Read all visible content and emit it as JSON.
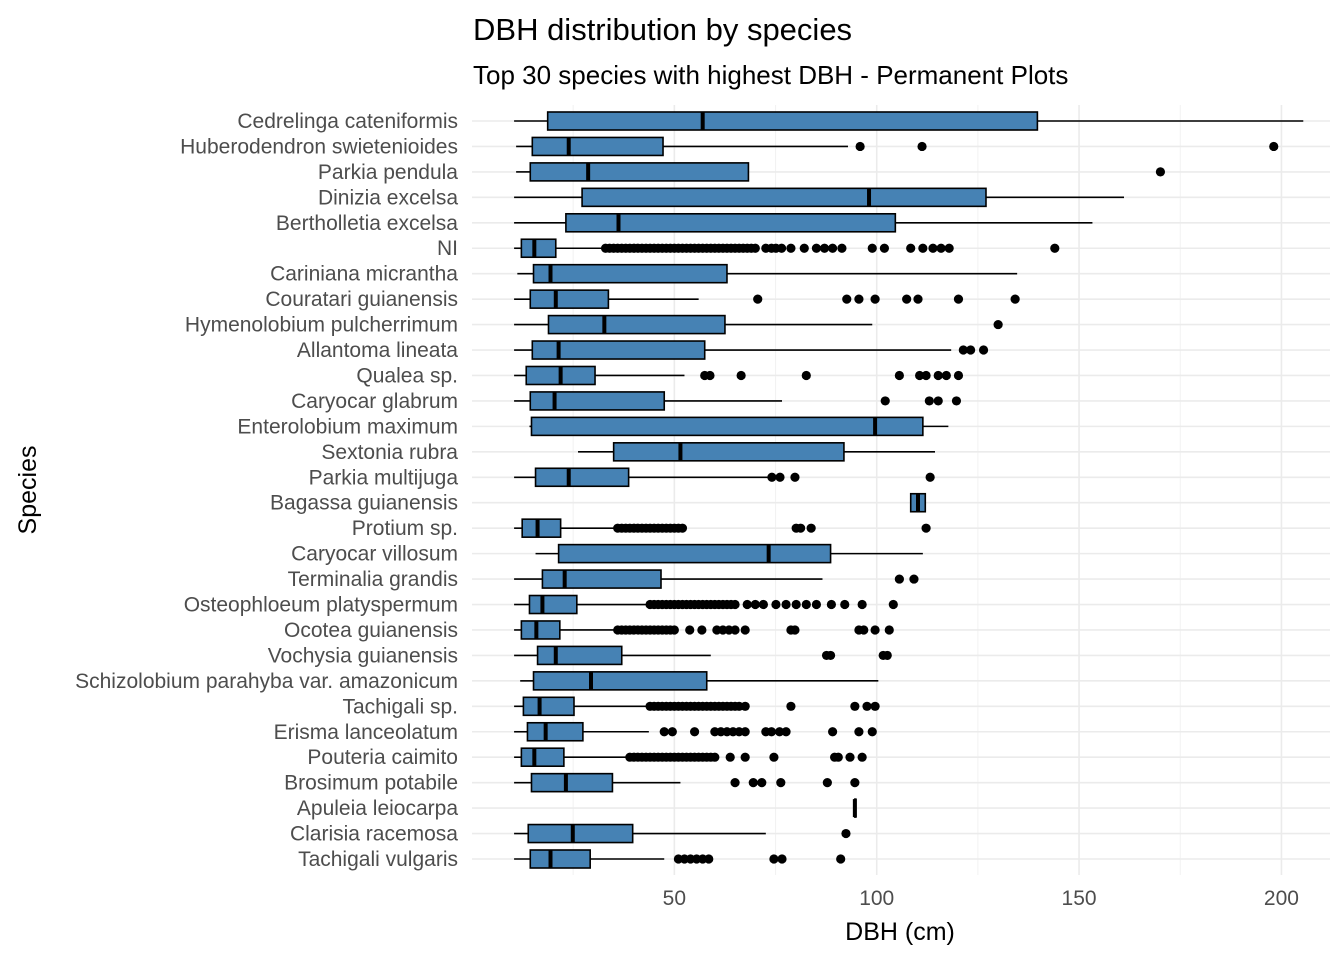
{
  "chart_data": {
    "type": "boxplot",
    "orientation": "horizontal",
    "title": "DBH distribution by species",
    "subtitle": "Top 30 species with highest DBH - Permanent Plots",
    "xlabel": "DBH (cm)",
    "ylabel": "Species",
    "xlim": [
      0,
      212
    ],
    "xticks": [
      50,
      100,
      150,
      200
    ],
    "grid": true,
    "box_color": "#4682B4",
    "species": [
      {
        "name": "Cedrelinga cateniformis",
        "whisker_low": 10.4,
        "q1": 18.7,
        "median": 57.0,
        "q3": 139.7,
        "whisker_high": 205.4,
        "outliers": []
      },
      {
        "name": "Huberodendron swietenioides",
        "whisker_low": 10.9,
        "q1": 14.9,
        "median": 23.9,
        "q3": 47.2,
        "whisker_high": 92.9,
        "outliers": [
          95.9,
          111.2,
          198.1
        ]
      },
      {
        "name": "Parkia pendula",
        "whisker_low": 10.9,
        "q1": 14.4,
        "median": 28.7,
        "q3": 68.3,
        "whisker_high": 68.3,
        "outliers": [
          170.1
        ]
      },
      {
        "name": "Dinizia excelsa",
        "whisker_low": 10.4,
        "q1": 27.2,
        "median": 98.1,
        "q3": 127.0,
        "whisker_high": 161.1,
        "outliers": []
      },
      {
        "name": "Bertholletia excelsa",
        "whisker_low": 10.4,
        "q1": 23.2,
        "median": 36.2,
        "q3": 104.6,
        "whisker_high": 153.3,
        "outliers": []
      },
      {
        "name": "NI",
        "whisker_low": 10.4,
        "q1": 12.2,
        "median": 15.4,
        "q3": 20.7,
        "whisker_high": 32.5,
        "outliers": [
          33,
          34,
          35,
          36,
          37,
          38,
          39,
          40,
          41,
          42,
          43,
          44,
          45,
          46,
          47,
          48,
          49,
          50,
          51,
          52,
          53,
          54,
          55,
          56,
          57,
          58,
          59,
          60,
          61,
          62,
          63,
          64,
          65,
          66,
          67,
          68,
          69,
          70,
          72.6,
          74,
          75.1,
          76.5,
          78.8,
          82.1,
          85.1,
          87.1,
          89.1,
          91.4,
          98.9,
          101.9,
          108.4,
          111.4,
          113.9,
          115.9,
          117.9,
          144.0
        ]
      },
      {
        "name": "Cariniana micrantha",
        "whisker_low": 11.2,
        "q1": 15.2,
        "median": 19.4,
        "q3": 63.0,
        "whisker_high": 134.7,
        "outliers": []
      },
      {
        "name": "Couratari guianensis",
        "whisker_low": 10.4,
        "q1": 14.4,
        "median": 20.7,
        "q3": 33.7,
        "whisker_high": 56.0,
        "outliers": [
          70.6,
          92.6,
          95.6,
          99.6,
          107.4,
          110.2,
          120.2,
          134.2
        ]
      },
      {
        "name": "Hymenolobium pulcherrimum",
        "whisker_low": 10.4,
        "q1": 18.9,
        "median": 32.7,
        "q3": 62.5,
        "whisker_high": 98.9,
        "outliers": [
          130.0
        ]
      },
      {
        "name": "Allantoma lineata",
        "whisker_low": 10.4,
        "q1": 14.9,
        "median": 21.4,
        "q3": 57.5,
        "whisker_high": 118.4,
        "outliers": [
          121.4,
          123.2,
          126.4
        ]
      },
      {
        "name": "Qualea sp.",
        "whisker_low": 10.4,
        "q1": 13.4,
        "median": 21.9,
        "q3": 30.4,
        "whisker_high": 52.5,
        "outliers": [
          57.5,
          58.8,
          66.5,
          82.6,
          105.6,
          110.6,
          112.2,
          115.2,
          117.2,
          120.2
        ]
      },
      {
        "name": "Caryocar glabrum",
        "whisker_low": 10.4,
        "q1": 14.4,
        "median": 20.4,
        "q3": 47.5,
        "whisker_high": 76.6,
        "outliers": [
          102.1,
          113.0,
          115.2,
          119.7
        ]
      },
      {
        "name": "Enterolobium maximum",
        "whisker_low": 14.2,
        "q1": 14.7,
        "median": 99.6,
        "q3": 111.4,
        "whisker_high": 117.7,
        "outliers": []
      },
      {
        "name": "Sextonia rubra",
        "whisker_low": 26.2,
        "q1": 35.0,
        "median": 51.5,
        "q3": 91.9,
        "whisker_high": 114.4,
        "outliers": []
      },
      {
        "name": "Parkia multijuga",
        "whisker_low": 10.4,
        "q1": 15.7,
        "median": 23.9,
        "q3": 38.7,
        "whisker_high": 73.1,
        "outliers": [
          74.1,
          76.1,
          79.8,
          113.2
        ]
      },
      {
        "name": "Bagassa guianensis",
        "whisker_low": 108.4,
        "q1": 108.4,
        "median": 110.2,
        "q3": 112.0,
        "whisker_high": 112.0,
        "outliers": []
      },
      {
        "name": "Protium sp.",
        "whisker_low": 10.4,
        "q1": 12.4,
        "median": 16.2,
        "q3": 21.9,
        "whisker_high": 35.5,
        "outliers": [
          36,
          37,
          38,
          39,
          40,
          41,
          42,
          43,
          44,
          45,
          46,
          47,
          48,
          49,
          50,
          51,
          52,
          80.1,
          81.2,
          83.8,
          112.2
        ]
      },
      {
        "name": "Caryocar villosum",
        "whisker_low": 15.7,
        "q1": 21.4,
        "median": 73.3,
        "q3": 88.6,
        "whisker_high": 111.4,
        "outliers": []
      },
      {
        "name": "Terminalia grandis",
        "whisker_low": 10.4,
        "q1": 17.4,
        "median": 22.9,
        "q3": 46.7,
        "whisker_high": 86.6,
        "outliers": [
          105.6,
          109.2
        ]
      },
      {
        "name": "Osteophloeum platyspermum",
        "whisker_low": 10.4,
        "q1": 14.2,
        "median": 17.4,
        "q3": 25.9,
        "whisker_high": 43.7,
        "outliers": [
          44,
          45,
          46,
          47,
          48,
          49,
          50,
          51,
          52,
          53,
          54,
          55,
          56,
          57,
          58,
          59,
          60,
          61,
          62,
          63,
          64,
          65,
          68,
          70,
          72,
          75.1,
          77.6,
          80.1,
          82.6,
          85.1,
          88.8,
          92.1,
          96.4,
          104.1
        ]
      },
      {
        "name": "Ocotea guianensis",
        "whisker_low": 10.4,
        "q1": 12.2,
        "median": 15.9,
        "q3": 21.7,
        "whisker_high": 35.5,
        "outliers": [
          36,
          37,
          38,
          39,
          40,
          41,
          42,
          43,
          44,
          45,
          46,
          47,
          48,
          49,
          50,
          53.8,
          56.8,
          60.5,
          62,
          63.5,
          65,
          67.5,
          78.8,
          79.8,
          95.6,
          96.8,
          99.6,
          103.1
        ]
      },
      {
        "name": "Vochysia guianensis",
        "whisker_low": 10.4,
        "q1": 16.2,
        "median": 20.7,
        "q3": 37.0,
        "whisker_high": 59.0,
        "outliers": [
          87.6,
          88.6,
          101.6,
          102.6
        ]
      },
      {
        "name": "Schizolobium parahyba var. amazonicum",
        "whisker_low": 11.9,
        "q1": 15.2,
        "median": 29.4,
        "q3": 58.0,
        "whisker_high": 100.4,
        "outliers": []
      },
      {
        "name": "Tachigali sp.",
        "whisker_low": 10.4,
        "q1": 12.7,
        "median": 16.7,
        "q3": 25.2,
        "whisker_high": 43.7,
        "outliers": [
          44,
          45,
          46,
          47,
          48,
          49,
          50,
          51,
          52,
          53,
          54,
          55,
          56,
          57,
          58,
          59,
          60,
          61,
          62,
          63,
          64,
          65,
          66,
          67.5,
          78.8,
          94.6,
          97.6,
          99.6
        ]
      },
      {
        "name": "Erisma lanceolatum",
        "whisker_low": 10.4,
        "q1": 13.7,
        "median": 18.2,
        "q3": 27.4,
        "whisker_high": 43.7,
        "outliers": [
          47.5,
          49.5,
          55.0,
          60,
          61.5,
          63,
          64.5,
          66,
          67.5,
          72.6,
          74,
          76,
          77.6,
          89.1,
          95.6,
          98.9
        ]
      },
      {
        "name": "Pouteria caimito",
        "whisker_low": 10.4,
        "q1": 12.2,
        "median": 15.4,
        "q3": 22.7,
        "whisker_high": 38.7,
        "outliers": [
          39,
          40,
          41,
          42,
          43,
          44,
          45,
          46,
          47,
          48,
          49,
          50,
          51,
          52,
          53,
          54,
          55,
          56,
          57,
          58,
          59,
          60,
          63.8,
          67.5,
          74.6,
          89.6,
          90.5,
          93.4,
          96.4
        ]
      },
      {
        "name": "Brosimum potabile",
        "whisker_low": 10.4,
        "q1": 14.7,
        "median": 23.2,
        "q3": 34.7,
        "whisker_high": 51.5,
        "outliers": [
          65.0,
          69.5,
          71.6,
          76.3,
          87.8,
          94.6
        ]
      },
      {
        "name": "Apuleia leiocarpa",
        "whisker_low": 94.6,
        "q1": 94.6,
        "median": 94.6,
        "q3": 94.6,
        "whisker_high": 94.6,
        "outliers": []
      },
      {
        "name": "Clarisia racemosa",
        "whisker_low": 10.4,
        "q1": 13.9,
        "median": 24.9,
        "q3": 39.7,
        "whisker_high": 72.6,
        "outliers": [
          92.4
        ]
      },
      {
        "name": "Tachigali vulgaris",
        "whisker_low": 10.4,
        "q1": 14.4,
        "median": 19.4,
        "q3": 29.2,
        "whisker_high": 47.5,
        "outliers": [
          51,
          52.5,
          54,
          55.5,
          57,
          58.5,
          74.6,
          76.6,
          91.1
        ]
      }
    ]
  }
}
